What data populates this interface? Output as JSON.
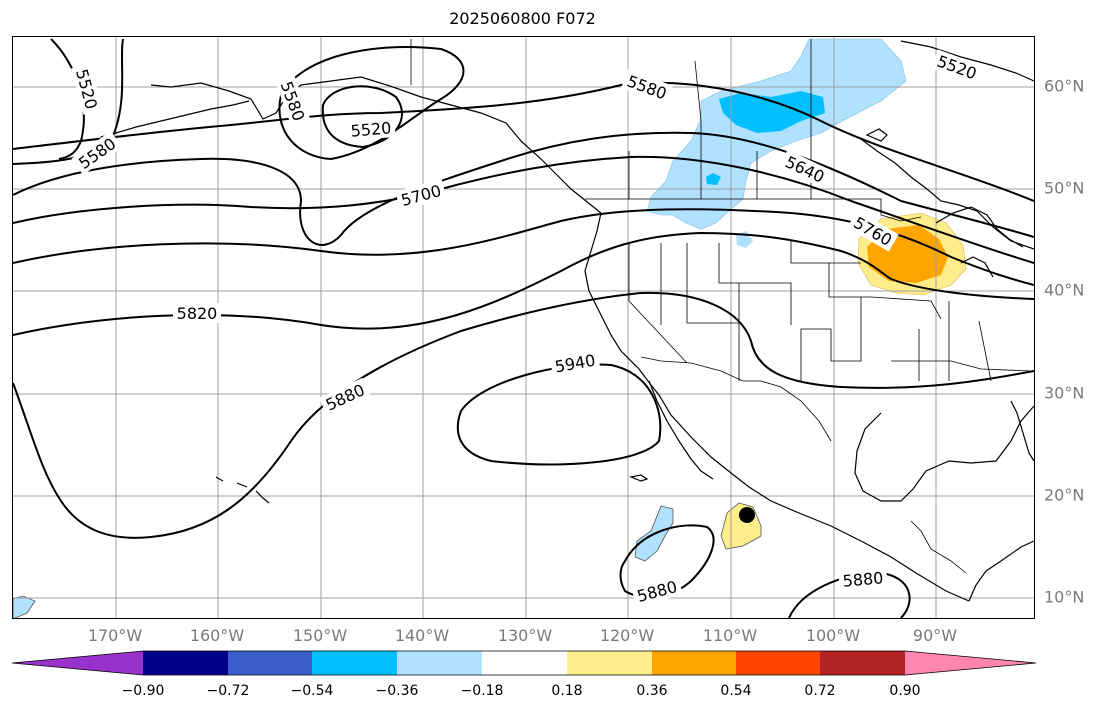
{
  "title": "2025060800 F072",
  "lat_labels": [
    "60°N",
    "50°N",
    "40°N",
    "30°N",
    "20°N",
    "10°N"
  ],
  "lon_labels": [
    "170°W",
    "160°W",
    "150°W",
    "140°W",
    "130°W",
    "120°W",
    "110°W",
    "100°W",
    "90°W"
  ],
  "contour_labels": [
    "5520",
    "5580",
    "5520",
    "5580",
    "5520",
    "5580",
    "5640",
    "5760",
    "5700",
    "5820",
    "5880",
    "5940",
    "5880",
    "5880"
  ],
  "colorbar": {
    "tick_labels": [
      "−0.90",
      "−0.72",
      "−0.54",
      "−0.36",
      "−0.18",
      "0.18",
      "0.36",
      "0.54",
      "0.72",
      "0.90"
    ],
    "colors": [
      "#9932cc",
      "#00008b",
      "#3a5fcd",
      "#00bfff",
      "#b0e2ff",
      "#ffffff",
      "#ffec8b",
      "#ffa500",
      "#ff4500",
      "#b22222",
      "#ff86b0"
    ]
  },
  "colors": {
    "contour": "#000000",
    "grid": "#a0a0a0",
    "coast": "#000000",
    "storm_marker": "#000000"
  }
}
